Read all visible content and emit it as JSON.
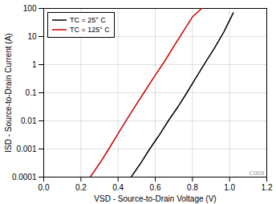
{
  "chart_data": {
    "type": "line",
    "xlabel": "VSD - Source-to-Drain Voltage (V)",
    "ylabel": "ISD - Source-to-Drain Current (A)",
    "log": "y",
    "xlim": [
      0,
      1.2
    ],
    "ylim": [
      0.0001,
      100
    ],
    "xticks": [
      {
        "value": 0,
        "label": "0.0"
      },
      0.2,
      0.4,
      0.6,
      0.8,
      {
        "value": 1.0,
        "label": "1.0"
      },
      1.2
    ],
    "yticks": [
      0.0001,
      0.001,
      0.01,
      0.1,
      1,
      10,
      100
    ],
    "grid": true,
    "legend": "upper left",
    "series": [
      {
        "name": "TC = 25° C",
        "color": "#000000",
        "x": [
          0.47,
          0.52,
          0.57,
          0.62,
          0.67,
          0.72,
          0.77,
          0.82,
          0.87,
          0.92,
          0.97,
          1.02
        ],
        "values": [
          0.0001,
          0.0003,
          0.001,
          0.003,
          0.01,
          0.03,
          0.1,
          0.35,
          1.2,
          4.0,
          15.0,
          70.0
        ]
      },
      {
        "name": "TC = 125° C",
        "color": "#cc0000",
        "x": [
          0.25,
          0.3,
          0.35,
          0.4,
          0.45,
          0.5,
          0.55,
          0.6,
          0.65,
          0.7,
          0.75,
          0.8,
          0.85
        ],
        "values": [
          0.0001,
          0.0003,
          0.001,
          0.0035,
          0.012,
          0.04,
          0.13,
          0.42,
          1.3,
          4.5,
          15.0,
          50.0,
          100.0
        ]
      }
    ],
    "annotations": [
      {
        "text": "C009"
      }
    ]
  }
}
